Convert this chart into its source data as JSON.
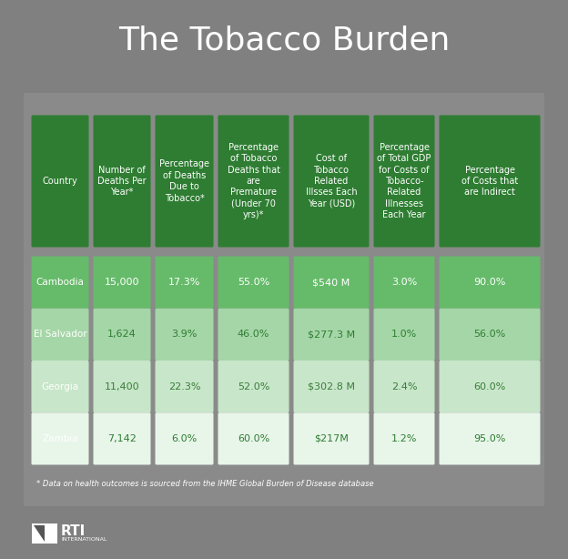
{
  "title": "The Tobacco Burden",
  "background_outer": "#808080",
  "background_inner": "#999999",
  "dark_green": "#2e7d32",
  "medium_green": "#66bb6a",
  "light_green": "#a5d6a7",
  "white": "#ffffff",
  "text_dark": "#333333",
  "footnote": "* Data on health outcomes is sourced from the IHME Global Burden of Disease database",
  "headers": [
    "Country",
    "Number of\nDeaths Per\nYear*",
    "Percentage\nof Deaths\nDue to\nTobacco*",
    "Percentage\nof Tobacco\nDeaths that\nare\nPremature\n(Under 70\nyrs)*",
    "Cost of\nTobacco\nRelated\nIllsses Each\nYear (USD)",
    "Percentage\nof Total GDP\nfor Costs of\nTobacco-\nRelated\nIllnesses\nEach Year",
    "Percentage\nof Costs that\nare Indirect"
  ],
  "countries": [
    "Cambodia",
    "El Salvador",
    "Georgia",
    "Zambia"
  ],
  "data": [
    [
      "15,000",
      "17.3%",
      "55.0%",
      "$540 M",
      "3.0%",
      "90.0%"
    ],
    [
      "1,624",
      "3.9%",
      "46.0%",
      "$277.3 M",
      "1.0%",
      "56.0%"
    ],
    [
      "11,400",
      "22.3%",
      "52.0%",
      "$302.8 M",
      "2.4%",
      "60.0%"
    ],
    [
      "7,142",
      "6.0%",
      "60.0%",
      "$217M",
      "1.2%",
      "95.0%"
    ]
  ],
  "row_colors": [
    "#66bb6a",
    "#a5d6a7",
    "#c8e6c9",
    "#e8f5e9"
  ]
}
